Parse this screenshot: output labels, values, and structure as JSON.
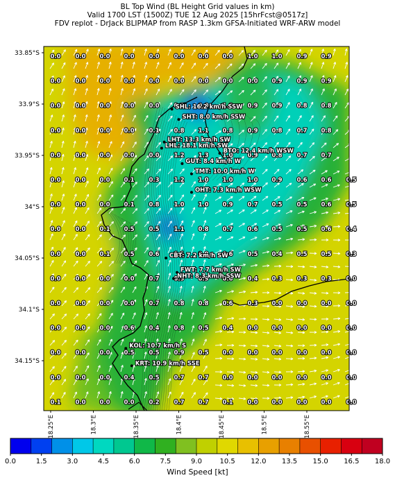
{
  "title": {
    "line1": "BL Top Wind (BL Height Grid values in km)",
    "line2": "Valid 1700 LST (1500Z) TUE 12 Aug 2025 [15hrFcst@0517z]",
    "line3": "FDV replot - DrJack BLIPMAP from RASP 1.3km GFSA-Initiated WRF-ARW model"
  },
  "lat_ticks": [
    "33.85°S",
    "33.9°S",
    "33.95°S",
    "34°S",
    "34.05°S",
    "34.1°S",
    "34.15°S"
  ],
  "lon_ticks": [
    "18.25°E",
    "18.3°E",
    "18.35°E",
    "18.4°E",
    "18.45°E",
    "18.5°E",
    "18.55°E"
  ],
  "grid_values": [
    [
      "0.0",
      "0.0",
      "0.0",
      "0.0",
      "0.0",
      "0.0",
      "0.0",
      "0.0",
      "1.0",
      "1.0",
      "0.9",
      "0.9",
      ""
    ],
    [
      "0.0",
      "0.0",
      "0.0",
      "0.0",
      "0.0",
      "0.0",
      "0.0",
      "0.0",
      "0.0",
      "0.9",
      "0.9",
      "0.9",
      ""
    ],
    [
      "0.0",
      "0.0",
      "0.0",
      "0.0",
      "0.0",
      "0.3",
      "0.0",
      "1.0",
      "0.9",
      "0.9",
      "0.8",
      "0.8",
      ""
    ],
    [
      "0.0",
      "0.0",
      "0.0",
      "0.0",
      "0.1",
      "0.8",
      "1.1",
      "0.8",
      "0.9",
      "0.8",
      "0.7",
      "0.8",
      ""
    ],
    [
      "0.0",
      "0.0",
      "0.0",
      "0.0",
      "0.0",
      "1.2",
      "1.3",
      "1.0",
      "0.9",
      "0.8",
      "0.7",
      "0.7",
      ""
    ],
    [
      "0.0",
      "0.0",
      "0.0",
      "0.1",
      "0.3",
      "1.2",
      "1.0",
      "1.0",
      "1.0",
      "0.9",
      "0.6",
      "0.6",
      "0.5"
    ],
    [
      "0.0",
      "0.0",
      "0.0",
      "0.1",
      "0.8",
      "1.0",
      "1.0",
      "0.9",
      "0.7",
      "0.5",
      "0.5",
      "0.6",
      "0.5"
    ],
    [
      "0.0",
      "0.0",
      "0.1",
      "0.5",
      "0.5",
      "1.1",
      "0.8",
      "0.7",
      "0.6",
      "0.5",
      "0.5",
      "0.6",
      "0.4"
    ],
    [
      "0.0",
      "0.0",
      "0.1",
      "0.5",
      "0.6",
      "1.1",
      "0.9",
      "0.6",
      "0.5",
      "0.4",
      "0.5",
      "0.5",
      "0.3"
    ],
    [
      "0.0",
      "0.0",
      "0.0",
      "0.0",
      "0.7",
      "0.9",
      "0.9",
      "0.6",
      "0.4",
      "0.3",
      "0.3",
      "0.3",
      "0.0"
    ],
    [
      "0.0",
      "0.0",
      "0.0",
      "0.0",
      "0.7",
      "0.8",
      "0.8",
      "0.6",
      "0.3",
      "0.0",
      "0.0",
      "0.0",
      "0.0"
    ],
    [
      "0.0",
      "0.0",
      "0.0",
      "0.6",
      "0.4",
      "0.8",
      "0.5",
      "0.4",
      "0.0",
      "0.0",
      "0.0",
      "0.0",
      "0.0"
    ],
    [
      "0.0",
      "0.0",
      "0.0",
      "0.5",
      "0.5",
      "0.9",
      "0.5",
      "0.0",
      "0.0",
      "0.0",
      "0.0",
      "0.0",
      "0.0"
    ],
    [
      "0.0",
      "0.0",
      "0.0",
      "0.4",
      "0.5",
      "0.7",
      "0.7",
      "0.0",
      "0.0",
      "0.0",
      "0.0",
      "0.0",
      "0.0"
    ],
    [
      "0.1",
      "0.0",
      "0.0",
      "0.0",
      "0.2",
      "0.7",
      "0.7",
      "0.1",
      "0.0",
      "0.0",
      "0.0",
      "0.0",
      "0.0"
    ]
  ],
  "stations": [
    {
      "label": "SHL: 16.2 km/h SSW",
      "lon": 18.392,
      "lat": -33.905
    },
    {
      "label": "SHT: 8.0 km/h SSW",
      "lon": 18.4,
      "lat": -33.915
    },
    {
      "label": "LHT: 13.3 km/h SW",
      "lon": 18.383,
      "lat": -33.937
    },
    {
      "label": "LHL: 18.1 km/h SW",
      "lon": 18.38,
      "lat": -33.943
    },
    {
      "label": "BTO: 12.4 km/h WSW",
      "lon": 18.448,
      "lat": -33.948
    },
    {
      "label": "GUT: 8.4 km/h W",
      "lon": 18.404,
      "lat": -33.958
    },
    {
      "label": "TMT: 10.0 km/h W",
      "lon": 18.415,
      "lat": -33.968
    },
    {
      "label": "OHT: 7.3 km/h WSW",
      "lon": 18.415,
      "lat": -33.986
    },
    {
      "label": "CBT: 7.2 km/h SW",
      "lon": 18.385,
      "lat": -34.05
    },
    {
      "label": "FWT: 7.7 km/h SW",
      "lon": 18.398,
      "lat": -34.064
    },
    {
      "label": "NHT: 8.3 km/h SSW",
      "lon": 18.394,
      "lat": -34.07
    },
    {
      "label": "KOL: 10.7 km/h S",
      "lon": 18.338,
      "lat": -34.138
    },
    {
      "label": "KRT: 10.9 km/h SSE",
      "lon": 18.345,
      "lat": -34.155
    }
  ],
  "colorbar": {
    "label": "Wind Speed [kt]",
    "ticks": [
      "0.0",
      "1.5",
      "3.0",
      "4.5",
      "6.0",
      "7.5",
      "9.0",
      "10.5",
      "12.0",
      "13.5",
      "15.0",
      "16.5",
      "18.0"
    ],
    "colors": [
      "#0000ee",
      "#0040f0",
      "#0090e8",
      "#00c8e8",
      "#00d8c0",
      "#00c890",
      "#10b848",
      "#30b020",
      "#80c020",
      "#c0d000",
      "#e0d800",
      "#e8c000",
      "#e8a000",
      "#e88000",
      "#e85000",
      "#e82000",
      "#d80010",
      "#c00020"
    ]
  },
  "field_colors": {
    "yellow": "#d4d400",
    "green": "#28b038",
    "cyan": "#00d0b8",
    "orange": "#e6b000",
    "blue": "#1050e0"
  }
}
